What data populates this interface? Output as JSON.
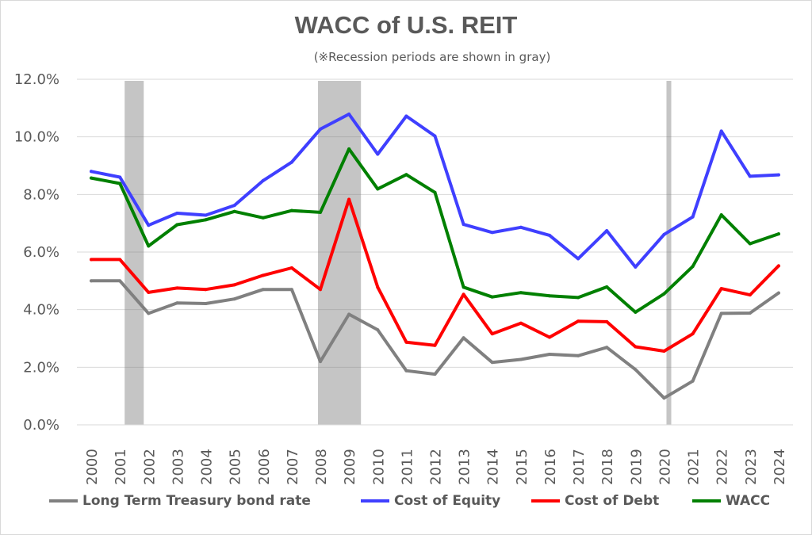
{
  "chart_data": {
    "type": "line",
    "title": "WACC of U.S. REIT",
    "subtitle": "(※Recession periods are shown in gray)",
    "categories": [
      "2000",
      "2001",
      "2002",
      "2003",
      "2004",
      "2005",
      "2006",
      "2007",
      "2008",
      "2009",
      "2010",
      "2011",
      "2012",
      "2013",
      "2014",
      "2015",
      "2016",
      "2017",
      "2018",
      "2019",
      "2020",
      "2021",
      "2022",
      "2023",
      "2024"
    ],
    "ylim": [
      0,
      12
    ],
    "yticks": [
      "0.0%",
      "2.0%",
      "4.0%",
      "6.0%",
      "8.0%",
      "10.0%",
      "12.0%"
    ],
    "grid": true,
    "legend_position": "bottom",
    "recession_periods": [
      {
        "start": "2001-03",
        "end": "2001-11"
      },
      {
        "start": "2007-12",
        "end": "2009-06"
      },
      {
        "start": "2020-02",
        "end": "2020-04"
      }
    ],
    "series": [
      {
        "name": "Long Term Treasury bond rate",
        "color": "#808080",
        "values": [
          5.0,
          5.0,
          3.87,
          4.23,
          4.21,
          4.37,
          4.7,
          4.7,
          2.2,
          3.84,
          3.3,
          1.88,
          1.76,
          3.02,
          2.17,
          2.27,
          2.45,
          2.4,
          2.69,
          1.92,
          0.93,
          1.52,
          3.87,
          3.88,
          4.58
        ]
      },
      {
        "name": "Cost of Equity",
        "color": "#3f3fff",
        "values": [
          8.8,
          8.6,
          6.93,
          7.35,
          7.28,
          7.62,
          8.48,
          9.12,
          10.27,
          10.79,
          9.4,
          10.72,
          10.03,
          6.96,
          6.68,
          6.86,
          6.58,
          5.77,
          6.74,
          5.48,
          6.61,
          7.22,
          10.2,
          8.63,
          8.68
        ]
      },
      {
        "name": "Cost of Debt",
        "color": "#ff0000",
        "values": [
          5.74,
          5.74,
          4.6,
          4.75,
          4.7,
          4.86,
          5.19,
          5.45,
          4.7,
          7.83,
          4.78,
          2.87,
          2.76,
          4.53,
          3.16,
          3.53,
          3.04,
          3.6,
          3.58,
          2.71,
          2.56,
          3.16,
          4.73,
          4.51,
          5.52
        ]
      },
      {
        "name": "WACC",
        "color": "#008000",
        "values": [
          8.57,
          8.38,
          6.21,
          6.95,
          7.12,
          7.41,
          7.19,
          7.44,
          7.38,
          9.58,
          8.19,
          8.69,
          8.07,
          4.78,
          4.44,
          4.59,
          4.48,
          4.42,
          4.79,
          3.91,
          4.55,
          5.5,
          7.29,
          6.29,
          6.63
        ]
      }
    ]
  }
}
